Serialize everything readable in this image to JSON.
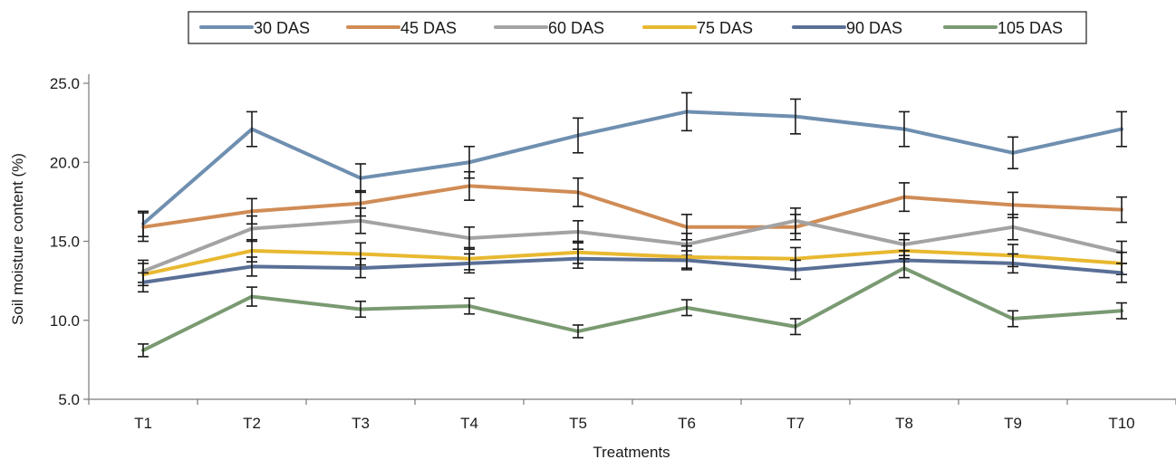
{
  "chart_data": {
    "type": "line",
    "title": "",
    "xlabel": "Treatments",
    "ylabel": "Soil moisture content (%)",
    "ylim": [
      5.0,
      25.0
    ],
    "yticks": [
      "5.0",
      "10.0",
      "15.0",
      "20.0",
      "25.0"
    ],
    "categories": [
      "T1",
      "T2",
      "T3",
      "T4",
      "T5",
      "T6",
      "T7",
      "T8",
      "T9",
      "T10"
    ],
    "grid": false,
    "legend_position": "top-center",
    "series": [
      {
        "name": "30 DAS",
        "color": "#6f8fb0",
        "values": [
          16.1,
          22.1,
          19.0,
          20.0,
          21.7,
          23.2,
          22.9,
          22.1,
          20.6,
          22.1
        ],
        "errors": [
          0.8,
          1.1,
          0.9,
          1.0,
          1.1,
          1.2,
          1.1,
          1.1,
          1.0,
          1.1
        ]
      },
      {
        "name": "45 DAS",
        "color": "#d08c56",
        "values": [
          15.9,
          16.9,
          17.4,
          18.5,
          18.1,
          15.9,
          15.9,
          17.8,
          17.3,
          17.0
        ],
        "errors": [
          0.9,
          0.8,
          0.8,
          0.9,
          0.9,
          0.8,
          0.8,
          0.9,
          0.8,
          0.8
        ]
      },
      {
        "name": "60 DAS",
        "color": "#a3a3a3",
        "values": [
          13.1,
          15.8,
          16.3,
          15.2,
          15.6,
          14.8,
          16.3,
          14.8,
          15.9,
          14.3
        ],
        "errors": [
          0.7,
          0.8,
          0.8,
          0.7,
          0.7,
          0.7,
          0.8,
          0.7,
          0.8,
          0.7
        ]
      },
      {
        "name": "75 DAS",
        "color": "#e8b830",
        "values": [
          12.9,
          14.4,
          14.2,
          13.9,
          14.3,
          14.0,
          13.9,
          14.4,
          14.1,
          13.6
        ],
        "errors": [
          0.7,
          0.7,
          0.7,
          0.7,
          0.7,
          0.7,
          0.7,
          0.7,
          0.7,
          0.7
        ]
      },
      {
        "name": "90 DAS",
        "color": "#5a6f96",
        "values": [
          12.4,
          13.4,
          13.3,
          13.6,
          13.9,
          13.8,
          13.2,
          13.8,
          13.6,
          13.0
        ],
        "errors": [
          0.6,
          0.6,
          0.6,
          0.6,
          0.6,
          0.6,
          0.6,
          0.6,
          0.6,
          0.6
        ]
      },
      {
        "name": "105 DAS",
        "color": "#7a9a72",
        "values": [
          8.1,
          11.5,
          10.7,
          10.9,
          9.3,
          10.8,
          9.6,
          13.3,
          10.1,
          10.6
        ],
        "errors": [
          0.4,
          0.6,
          0.5,
          0.5,
          0.4,
          0.5,
          0.5,
          0.6,
          0.5,
          0.5
        ]
      }
    ]
  }
}
